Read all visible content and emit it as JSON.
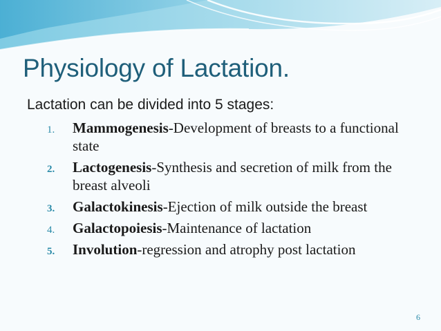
{
  "slide": {
    "title": "Physiology of Lactation.",
    "intro": "Lactation can be divided into 5 stages:",
    "stages": [
      {
        "number": "1.",
        "term": " Mammogenesis",
        "description": "-Development of breasts to a functional state"
      },
      {
        "number": "2.",
        "term": "Lactogenesis",
        "description": "-Synthesis and secretion of milk from the breast alveoli"
      },
      {
        "number": "3.",
        "term": "Galactokinesis",
        "description": "-Ejection of milk outside the breast"
      },
      {
        "number": "4.",
        "term": " Galactopoiesis",
        "description": "-Maintenance of lactation"
      },
      {
        "number": "5.",
        "term": "Involution",
        "description": "-regression and atrophy post lactation"
      }
    ],
    "page_number": "6"
  },
  "colors": {
    "title": "#1f5f7a",
    "accent": "#2a8aa8",
    "background": "#f7fbfd"
  }
}
